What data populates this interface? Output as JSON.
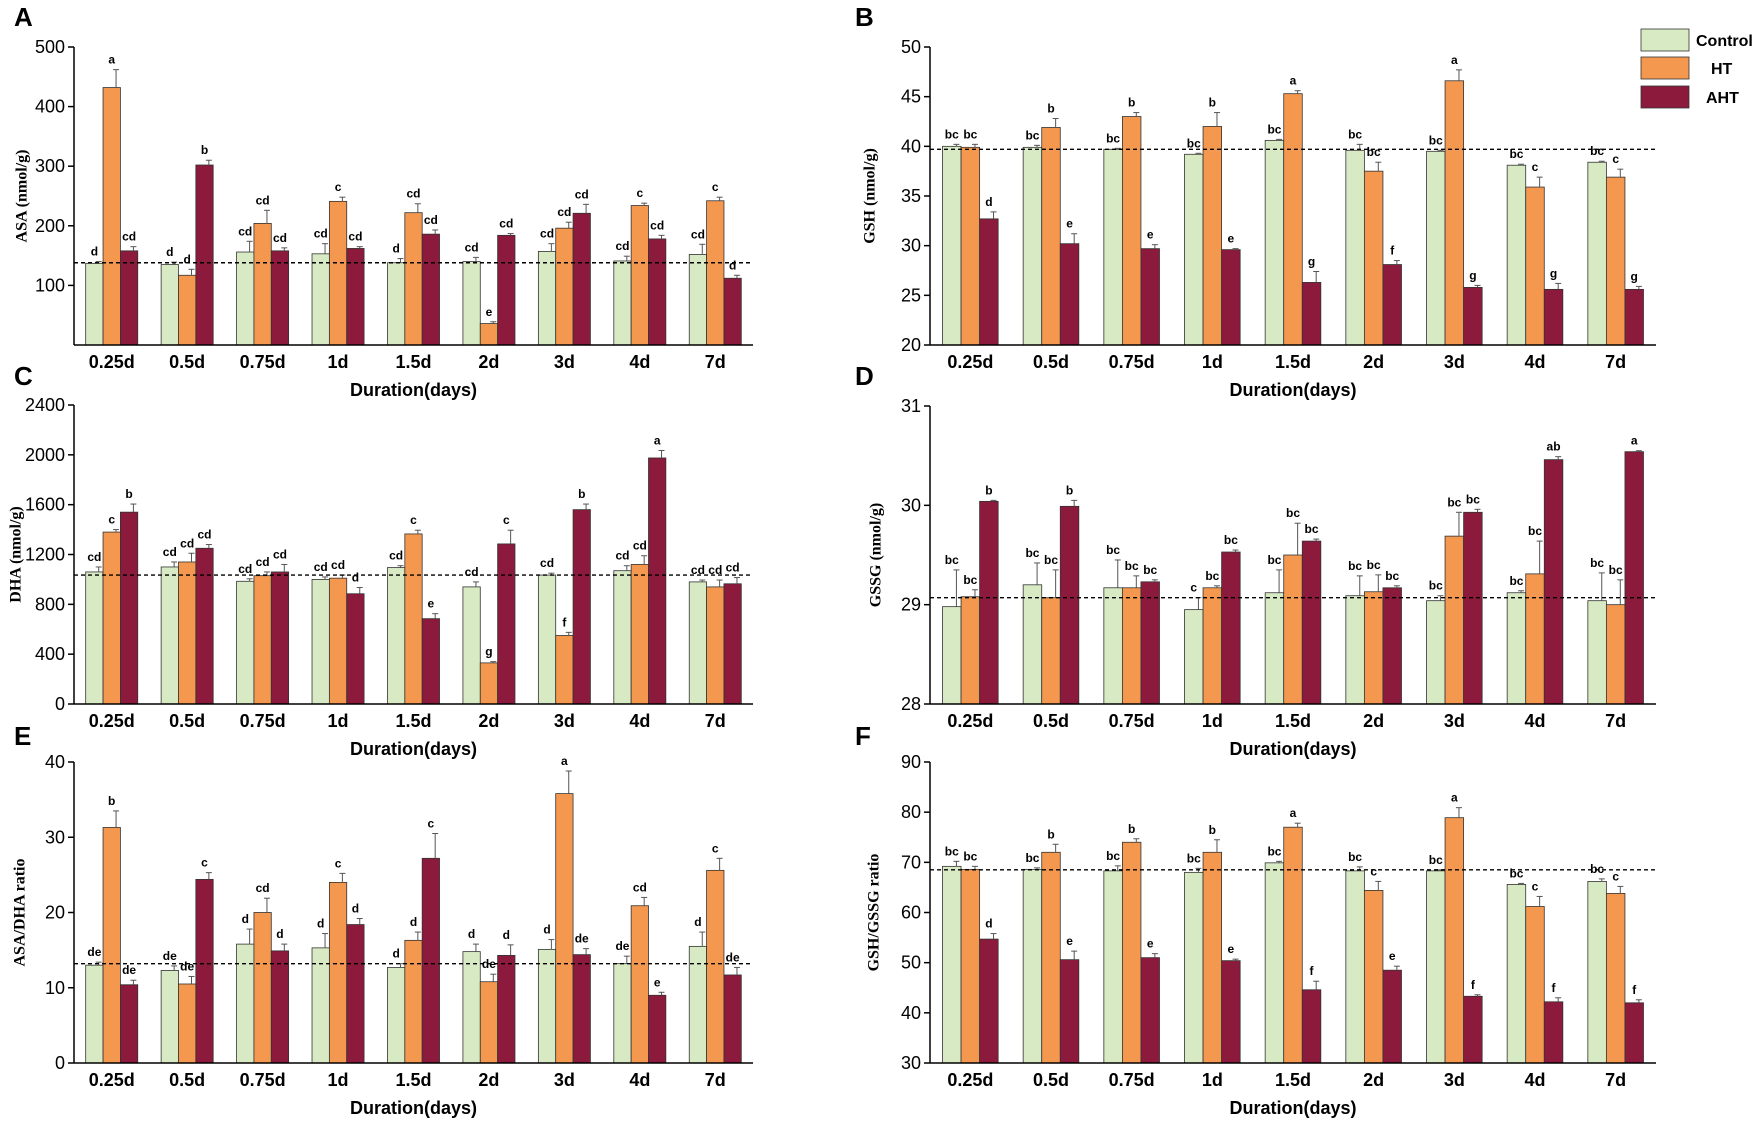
{
  "colors": {
    "Control": "#d8eac3",
    "HT": "#f4984f",
    "AHT": "#8b1a3c"
  },
  "legend": [
    "Control",
    "HT",
    "AHT"
  ],
  "chart_data": [
    {
      "panel": "A",
      "type": "bar",
      "title": "",
      "ylabel": "ASA (nmol/g)",
      "xlabel": "Duration(days)",
      "ylim": [
        0,
        500
      ],
      "yticks": [
        100,
        200,
        300,
        400,
        500
      ],
      "ref_line": 138,
      "categories": [
        "0.25d",
        "0.5d",
        "0.75d",
        "1d",
        "1.5d",
        "2d",
        "3d",
        "4d",
        "7d"
      ],
      "series": [
        {
          "name": "Control",
          "values": [
            137,
            135,
            156,
            153,
            138,
            140,
            157,
            141,
            152
          ],
          "errors": [
            3,
            4,
            18,
            17,
            7,
            7,
            13,
            8,
            17
          ],
          "letters": [
            "d",
            "d",
            "cd",
            "cd",
            "d",
            "cd",
            "cd",
            "cd",
            "cd"
          ]
        },
        {
          "name": "HT",
          "values": [
            432,
            117,
            204,
            241,
            222,
            36,
            196,
            234,
            242
          ],
          "errors": [
            30,
            10,
            22,
            7,
            15,
            3,
            10,
            4,
            6
          ],
          "letters": [
            "a",
            "d",
            "cd",
            "c",
            "cd",
            "e",
            "cd",
            "c",
            "c"
          ]
        },
        {
          "name": "AHT",
          "values": [
            158,
            302,
            158,
            162,
            186,
            184,
            221,
            178,
            112
          ],
          "errors": [
            7,
            8,
            5,
            3,
            7,
            3,
            15,
            6,
            5
          ],
          "letters": [
            "cd",
            "b",
            "cd",
            "cd",
            "cd",
            "cd",
            "cd",
            "cd",
            "d"
          ]
        }
      ]
    },
    {
      "panel": "B",
      "type": "bar",
      "title": "",
      "ylabel": "GSH (nmol/g)",
      "xlabel": "Duration(days)",
      "ylim": [
        20,
        50
      ],
      "yticks": [
        20,
        25,
        30,
        35,
        40,
        45,
        50
      ],
      "ref_line": 39.7,
      "categories": [
        "0.25d",
        "0.5d",
        "0.75d",
        "1d",
        "1.5d",
        "2d",
        "3d",
        "4d",
        "7d"
      ],
      "series": [
        {
          "name": "Control",
          "values": [
            40.0,
            39.9,
            39.7,
            39.2,
            40.6,
            39.6,
            39.5,
            38.1,
            38.4
          ],
          "errors": [
            0.2,
            0.2,
            0.1,
            0.1,
            0.1,
            0.6,
            0.1,
            0.1,
            0.1
          ],
          "letters": [
            "bc",
            "bc",
            "bc",
            "bc",
            "bc",
            "bc",
            "bc",
            "bc",
            "bc"
          ]
        },
        {
          "name": "HT",
          "values": [
            39.9,
            41.9,
            43.0,
            42.0,
            45.3,
            37.5,
            46.6,
            35.9,
            36.9
          ],
          "errors": [
            0.3,
            0.9,
            0.4,
            1.4,
            0.3,
            0.9,
            1.1,
            1.0,
            0.8
          ],
          "letters": [
            "bc",
            "b",
            "b",
            "b",
            "a",
            "bc",
            "a",
            "c",
            "c"
          ]
        },
        {
          "name": "AHT",
          "values": [
            32.7,
            30.2,
            29.7,
            29.6,
            26.3,
            28.1,
            25.8,
            25.6,
            25.6
          ],
          "errors": [
            0.7,
            1.0,
            0.4,
            0.1,
            1.1,
            0.4,
            0.2,
            0.6,
            0.3
          ],
          "letters": [
            "d",
            "e",
            "e",
            "e",
            "g",
            "f",
            "g",
            "g",
            "g"
          ]
        }
      ]
    },
    {
      "panel": "C",
      "type": "bar",
      "title": "",
      "ylabel": "DHA (nmol/g)",
      "xlabel": "Duration(days)",
      "ylim": [
        0,
        2400
      ],
      "yticks": [
        0,
        400,
        800,
        1200,
        1600,
        2000,
        2400
      ],
      "ref_line": 1035,
      "categories": [
        "0.25d",
        "0.5d",
        "0.75d",
        "1d",
        "1.5d",
        "2d",
        "3d",
        "4d",
        "7d"
      ],
      "series": [
        {
          "name": "Control",
          "values": [
            1060,
            1100,
            985,
            1000,
            1095,
            940,
            1035,
            1070,
            980
          ],
          "errors": [
            40,
            40,
            20,
            20,
            15,
            40,
            15,
            40,
            15
          ],
          "letters": [
            "cd",
            "cd",
            "cd",
            "cd",
            "cd",
            "cd",
            "cd",
            "cd",
            "cd"
          ]
        },
        {
          "name": "HT",
          "values": [
            1380,
            1140,
            1030,
            1010,
            1365,
            330,
            550,
            1120,
            940
          ],
          "errors": [
            20,
            70,
            30,
            25,
            30,
            10,
            25,
            70,
            55
          ],
          "letters": [
            "c",
            "cd",
            "cd",
            "cd",
            "c",
            "g",
            "f",
            "cd",
            "cd"
          ]
        },
        {
          "name": "AHT",
          "values": [
            1540,
            1250,
            1060,
            885,
            685,
            1285,
            1560,
            1975,
            965
          ],
          "errors": [
            65,
            30,
            60,
            50,
            40,
            110,
            45,
            60,
            50
          ],
          "letters": [
            "b",
            "cd",
            "cd",
            "d",
            "e",
            "c",
            "b",
            "a",
            "cd"
          ]
        }
      ]
    },
    {
      "panel": "D",
      "type": "bar",
      "title": "",
      "ylabel": "GSSG (nmol/g)",
      "xlabel": "Duration(days)",
      "ylim": [
        28,
        31
      ],
      "yticks": [
        28,
        29,
        30,
        31
      ],
      "ref_line": 29.07,
      "categories": [
        "0.25d",
        "0.5d",
        "0.75d",
        "1d",
        "1.5d",
        "2d",
        "3d",
        "4d",
        "7d"
      ],
      "series": [
        {
          "name": "Control",
          "values": [
            28.98,
            29.2,
            29.17,
            28.95,
            29.12,
            29.09,
            29.04,
            29.12,
            29.04
          ],
          "errors": [
            0.37,
            0.22,
            0.28,
            0.12,
            0.23,
            0.2,
            0.05,
            0.02,
            0.28
          ],
          "letters": [
            "bc",
            "bc",
            "bc",
            "c",
            "bc",
            "bc",
            "bc",
            "bc",
            "bc"
          ]
        },
        {
          "name": "HT",
          "values": [
            29.08,
            29.07,
            29.17,
            29.17,
            29.5,
            29.13,
            29.69,
            29.31,
            29.0
          ],
          "errors": [
            0.07,
            0.28,
            0.12,
            0.02,
            0.32,
            0.17,
            0.24,
            0.33,
            0.25
          ],
          "letters": [
            "bc",
            "bc",
            "bc",
            "bc",
            "bc",
            "bc",
            "bc",
            "bc",
            "bc"
          ]
        },
        {
          "name": "AHT",
          "values": [
            30.04,
            29.99,
            29.23,
            29.53,
            29.64,
            29.17,
            29.93,
            30.46,
            30.54
          ],
          "errors": [
            0.01,
            0.06,
            0.02,
            0.02,
            0.02,
            0.02,
            0.03,
            0.03,
            0.01
          ],
          "letters": [
            "b",
            "b",
            "bc",
            "bc",
            "bc",
            "bc",
            "bc",
            "ab",
            "a"
          ]
        }
      ]
    },
    {
      "panel": "E",
      "type": "bar",
      "title": "",
      "ylabel": "ASA/DHA ratio",
      "xlabel": "Duration(days)",
      "ylim": [
        0,
        40
      ],
      "yticks": [
        0,
        10,
        20,
        30,
        40
      ],
      "ref_line": 13.2,
      "categories": [
        "0.25d",
        "0.5d",
        "0.75d",
        "1d",
        "1.5d",
        "2d",
        "3d",
        "4d",
        "7d"
      ],
      "series": [
        {
          "name": "Control",
          "values": [
            13.0,
            12.3,
            15.8,
            15.3,
            12.7,
            14.8,
            15.1,
            13.2,
            15.5
          ],
          "errors": [
            0.4,
            0.6,
            2.0,
            1.9,
            0.5,
            1.0,
            1.3,
            1.0,
            1.9
          ],
          "letters": [
            "de",
            "de",
            "d",
            "d",
            "d",
            "d",
            "d",
            "de",
            "d"
          ]
        },
        {
          "name": "HT",
          "values": [
            31.3,
            10.5,
            20.0,
            24.0,
            16.3,
            10.8,
            35.8,
            20.9,
            25.6
          ],
          "errors": [
            2.2,
            1.0,
            1.9,
            1.2,
            1.1,
            1.0,
            3.0,
            1.1,
            1.6
          ],
          "letters": [
            "b",
            "de",
            "cd",
            "c",
            "d",
            "de",
            "a",
            "cd",
            "c"
          ]
        },
        {
          "name": "AHT",
          "values": [
            10.4,
            24.4,
            14.9,
            18.4,
            27.2,
            14.3,
            14.4,
            9.0,
            11.7
          ],
          "errors": [
            0.6,
            0.9,
            0.9,
            0.8,
            3.3,
            1.4,
            0.8,
            0.4,
            1.0
          ],
          "letters": [
            "de",
            "c",
            "d",
            "d",
            "c",
            "d",
            "de",
            "e",
            "de"
          ]
        }
      ]
    },
    {
      "panel": "F",
      "type": "bar",
      "title": "",
      "ylabel": "GSH/GSSG ratio",
      "xlabel": "Duration(days)",
      "ylim": [
        30,
        90
      ],
      "yticks": [
        30,
        40,
        50,
        60,
        70,
        80,
        90
      ],
      "ref_line": 68.5,
      "categories": [
        "0.25d",
        "0.5d",
        "0.75d",
        "1d",
        "1.5d",
        "2d",
        "3d",
        "4d",
        "7d"
      ],
      "series": [
        {
          "name": "Control",
          "values": [
            69.2,
            68.6,
            68.3,
            68.0,
            69.9,
            68.3,
            68.3,
            65.6,
            66.2
          ],
          "errors": [
            1.0,
            0.3,
            1.0,
            0.8,
            0.3,
            0.8,
            0.2,
            0.2,
            0.5
          ],
          "letters": [
            "bc",
            "bc",
            "bc",
            "bc",
            "bc",
            "bc",
            "bc",
            "bc",
            "bc"
          ]
        },
        {
          "name": "HT",
          "values": [
            68.6,
            72.0,
            74.0,
            72.0,
            77.0,
            64.4,
            78.9,
            61.2,
            63.8
          ],
          "errors": [
            0.6,
            1.6,
            0.7,
            2.5,
            0.8,
            1.8,
            2.0,
            2.0,
            1.4
          ],
          "letters": [
            "bc",
            "b",
            "b",
            "b",
            "a",
            "c",
            "a",
            "c",
            "c"
          ]
        },
        {
          "name": "AHT",
          "values": [
            54.7,
            50.6,
            51.0,
            50.4,
            44.6,
            48.5,
            43.3,
            42.2,
            42.0
          ],
          "errors": [
            1.1,
            1.7,
            0.8,
            0.3,
            1.7,
            0.8,
            0.3,
            0.8,
            0.6
          ],
          "letters": [
            "d",
            "e",
            "e",
            "e",
            "f",
            "e",
            "f",
            "f",
            "f"
          ]
        }
      ]
    }
  ]
}
